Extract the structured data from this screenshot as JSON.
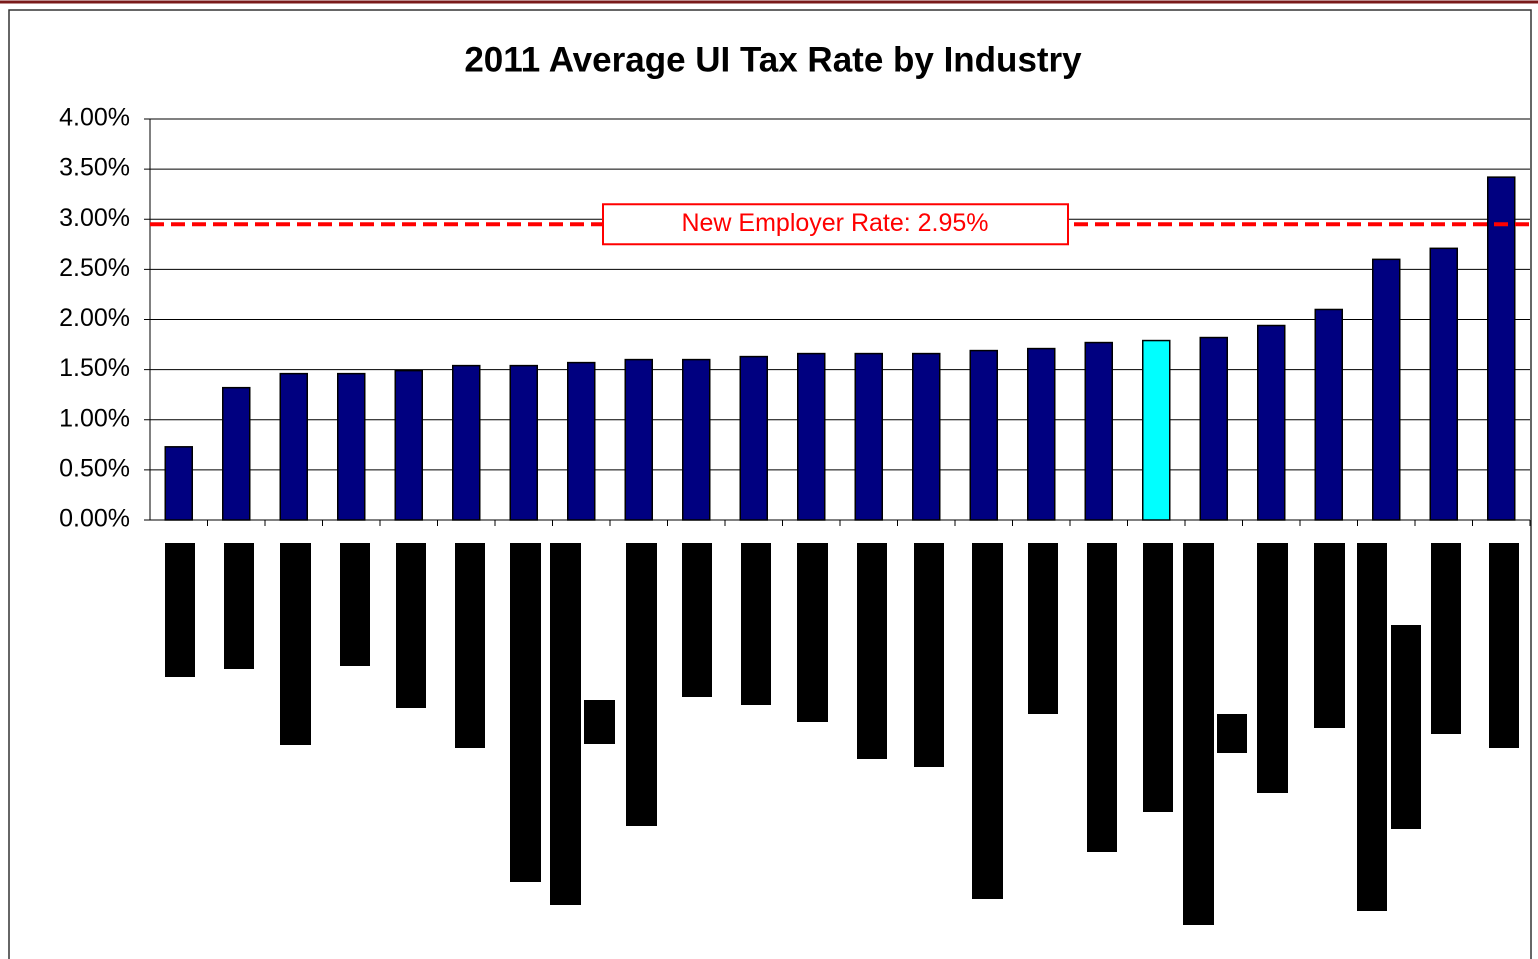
{
  "chart_data": {
    "type": "bar",
    "title": "2011 Average UI Tax Rate by Industry",
    "categories": [
      null,
      null,
      null,
      null,
      null,
      null,
      null,
      null,
      null,
      null,
      null,
      null,
      null,
      null,
      null,
      null,
      null,
      null,
      null,
      null,
      null,
      null,
      null,
      null
    ],
    "values": [
      0.73,
      1.32,
      1.46,
      1.46,
      1.49,
      1.54,
      1.54,
      1.57,
      1.6,
      1.6,
      1.63,
      1.66,
      1.66,
      1.66,
      1.69,
      1.71,
      1.77,
      1.79,
      1.82,
      1.94,
      2.1,
      2.6,
      2.71,
      3.42
    ],
    "colors": [
      "#000080",
      "#000080",
      "#000080",
      "#000080",
      "#000080",
      "#000080",
      "#000080",
      "#000080",
      "#000080",
      "#000080",
      "#000080",
      "#000080",
      "#000080",
      "#000080",
      "#000080",
      "#000080",
      "#000080",
      "#00ffff",
      "#000080",
      "#000080",
      "#000080",
      "#000080",
      "#000080",
      "#000080"
    ],
    "ylim": [
      0,
      4
    ],
    "yticks": [
      {
        "value": 0,
        "label": "0.00%"
      },
      {
        "value": 0.5,
        "label": "0.50%"
      },
      {
        "value": 1,
        "label": "1.00%"
      },
      {
        "value": 1.5,
        "label": "1.50%"
      },
      {
        "value": 2,
        "label": "2.00%"
      },
      {
        "value": 2.5,
        "label": "2.50%"
      },
      {
        "value": 3,
        "label": "3.00%"
      },
      {
        "value": 3.5,
        "label": "3.50%"
      },
      {
        "value": 4,
        "label": "4.00%"
      }
    ],
    "grid": true,
    "reference_line": {
      "value": 2.95,
      "label": "New Employer Rate: 2.95%",
      "color": "#ff0000"
    }
  }
}
